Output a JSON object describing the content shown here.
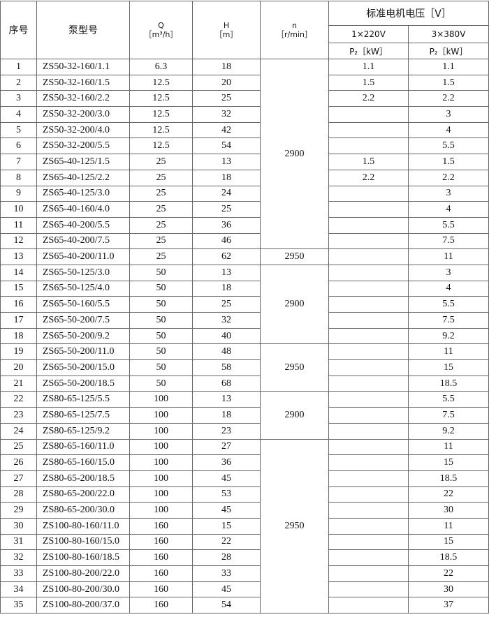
{
  "table": {
    "header": {
      "index": "序号",
      "model": "泵型号",
      "q": "Q",
      "q_unit": "［m³/h］",
      "h": "H",
      "h_unit": "［m］",
      "n": "n",
      "n_unit": "［r/min］",
      "voltage": "标准电机电压［V］",
      "v220": "1×220V",
      "v380": "3×380V",
      "p220": "P₂［kW］",
      "p380": "P₂［kW］"
    },
    "rows": [
      [
        1,
        "ZS50-32-160/1.1",
        6.3,
        18,
        1.1,
        1.1
      ],
      [
        2,
        "ZS50-32-160/1.5",
        12.5,
        20,
        1.5,
        1.5
      ],
      [
        3,
        "ZS50-32-160/2.2",
        12.5,
        25,
        2.2,
        2.2
      ],
      [
        4,
        "ZS50-32-200/3.0",
        12.5,
        32,
        null,
        3
      ],
      [
        5,
        "ZS50-32-200/4.0",
        12.5,
        42,
        null,
        4
      ],
      [
        6,
        "ZS50-32-200/5.5",
        12.5,
        54,
        null,
        5.5
      ],
      [
        7,
        "ZS65-40-125/1.5",
        25,
        13,
        1.5,
        1.5
      ],
      [
        8,
        "ZS65-40-125/2.2",
        25,
        18,
        2.2,
        2.2
      ],
      [
        9,
        "ZS65-40-125/3.0",
        25,
        24,
        null,
        3
      ],
      [
        10,
        "ZS65-40-160/4.0",
        25,
        25,
        null,
        4
      ],
      [
        11,
        "ZS65-40-200/5.5",
        25,
        36,
        null,
        5.5
      ],
      [
        12,
        "ZS65-40-200/7.5",
        25,
        46,
        null,
        7.5
      ],
      [
        13,
        "ZS65-40-200/11.0",
        25,
        62,
        null,
        11
      ],
      [
        14,
        "ZS65-50-125/3.0",
        50,
        13,
        null,
        3
      ],
      [
        15,
        "ZS65-50-125/4.0",
        50,
        18,
        null,
        4
      ],
      [
        16,
        "ZS65-50-160/5.5",
        50,
        25,
        null,
        5.5
      ],
      [
        17,
        "ZS65-50-200/7.5",
        50,
        32,
        null,
        7.5
      ],
      [
        18,
        "ZS65-50-200/9.2",
        50,
        40,
        null,
        9.2
      ],
      [
        19,
        "ZS65-50-200/11.0",
        50,
        48,
        null,
        11
      ],
      [
        20,
        "ZS65-50-200/15.0",
        50,
        58,
        null,
        15
      ],
      [
        21,
        "ZS65-50-200/18.5",
        50,
        68,
        null,
        18.5
      ],
      [
        22,
        "ZS80-65-125/5.5",
        100,
        13,
        null,
        5.5
      ],
      [
        23,
        "ZS80-65-125/7.5",
        100,
        18,
        null,
        7.5
      ],
      [
        24,
        "ZS80-65-125/9.2",
        100,
        23,
        null,
        9.2
      ],
      [
        25,
        "ZS80-65-160/11.0",
        100,
        27,
        null,
        11
      ],
      [
        26,
        "ZS80-65-160/15.0",
        100,
        36,
        null,
        15
      ],
      [
        27,
        "ZS80-65-200/18.5",
        100,
        45,
        null,
        18.5
      ],
      [
        28,
        "ZS80-65-200/22.0",
        100,
        53,
        null,
        22
      ],
      [
        29,
        "ZS80-65-200/30.0",
        100,
        45,
        null,
        30
      ],
      [
        30,
        "ZS100-80-160/11.0",
        160,
        15,
        null,
        11
      ],
      [
        31,
        "ZS100-80-160/15.0",
        160,
        22,
        null,
        15
      ],
      [
        32,
        "ZS100-80-160/18.5",
        160,
        28,
        null,
        18.5
      ],
      [
        33,
        "ZS100-80-200/22.0",
        160,
        33,
        null,
        22
      ],
      [
        34,
        "ZS100-80-200/30.0",
        160,
        45,
        null,
        30
      ],
      [
        35,
        "ZS100-80-200/37.0",
        160,
        54,
        null,
        37
      ]
    ],
    "speed_groups": [
      {
        "n": 2900,
        "from": 1,
        "to": 12
      },
      {
        "n": 2950,
        "from": 13,
        "to": 13
      },
      {
        "n": 2900,
        "from": 14,
        "to": 18
      },
      {
        "n": 2950,
        "from": 19,
        "to": 21
      },
      {
        "n": 2900,
        "from": 22,
        "to": 24
      },
      {
        "n": 2950,
        "from": 25,
        "to": 35
      }
    ]
  }
}
